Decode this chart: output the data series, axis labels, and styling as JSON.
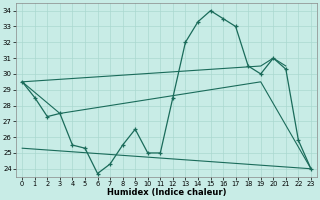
{
  "xlabel": "Humidex (Indice chaleur)",
  "xlim": [
    -0.5,
    23.5
  ],
  "ylim": [
    23.5,
    34.5
  ],
  "yticks": [
    24,
    25,
    26,
    27,
    28,
    29,
    30,
    31,
    32,
    33,
    34
  ],
  "xticks": [
    0,
    1,
    2,
    3,
    4,
    5,
    6,
    7,
    8,
    9,
    10,
    11,
    12,
    13,
    14,
    15,
    16,
    17,
    18,
    19,
    20,
    21,
    22,
    23
  ],
  "bg_color": "#c8ece6",
  "grid_color": "#aad8d0",
  "line_color": "#1a6b5a",
  "main_x": [
    0,
    1,
    2,
    3,
    4,
    5,
    6,
    7,
    8,
    9,
    10,
    11,
    12,
    13,
    14,
    15,
    16,
    17,
    18,
    19,
    20,
    21,
    22,
    23
  ],
  "main_y": [
    29.5,
    28.5,
    27.3,
    27.5,
    25.5,
    25.3,
    23.7,
    24.3,
    25.5,
    26.5,
    25.0,
    25.0,
    28.5,
    32.0,
    33.3,
    34.0,
    33.5,
    33.0,
    30.5,
    30.0,
    31.0,
    30.3,
    25.8,
    24.0
  ],
  "line2_x": [
    0,
    19,
    20,
    21
  ],
  "line2_y": [
    29.5,
    30.5,
    31.0,
    30.5
  ],
  "line3_x": [
    0,
    3,
    19,
    23
  ],
  "line3_y": [
    29.5,
    27.5,
    29.5,
    24.0
  ],
  "line4_x": [
    0,
    23
  ],
  "line4_y": [
    25.3,
    24.0
  ]
}
